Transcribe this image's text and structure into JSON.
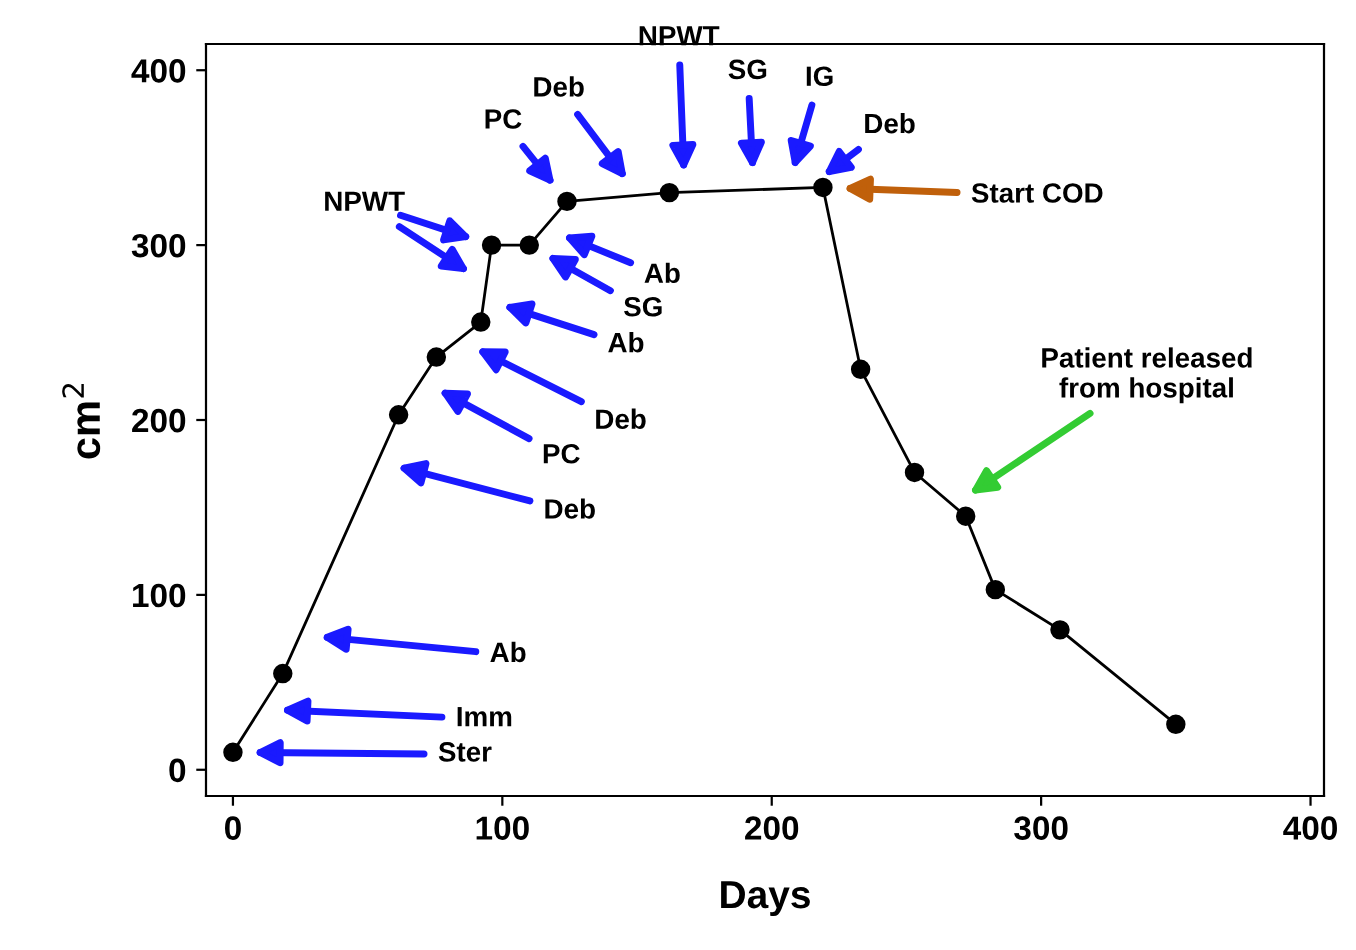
{
  "chart_data": {
    "type": "line",
    "xlabel": "Days",
    "ylabel": "cm$^{2}$",
    "x": [
      0,
      18.5,
      61.5,
      75.5,
      92,
      96,
      110,
      124,
      162,
      219,
      233,
      253,
      272,
      283,
      307,
      350
    ],
    "series": [
      {
        "color": "#000000",
        "values": [
          10,
          55,
          203,
          236,
          256,
          300,
          300,
          325,
          330,
          333,
          229,
          170,
          145,
          103,
          80,
          26
        ]
      }
    ],
    "xlim": [
      -10,
      405
    ],
    "ylim": [
      -15,
      415
    ],
    "xticks": [
      0,
      100,
      200,
      300,
      400
    ],
    "yticks": [
      0,
      100,
      200,
      300,
      400
    ],
    "grid": false,
    "legend": false,
    "marker": "circle",
    "line_style": "solid",
    "annotations": [
      "Ster",
      "Imm",
      "Ab",
      "Deb",
      "PC",
      "Deb",
      "Ab",
      "SG",
      "Ab",
      "NPWT",
      "PC",
      "Deb",
      "NPWT",
      "SG",
      "IG",
      "Deb",
      "Start COD",
      "Patient released\nfrom hospital"
    ]
  }
}
